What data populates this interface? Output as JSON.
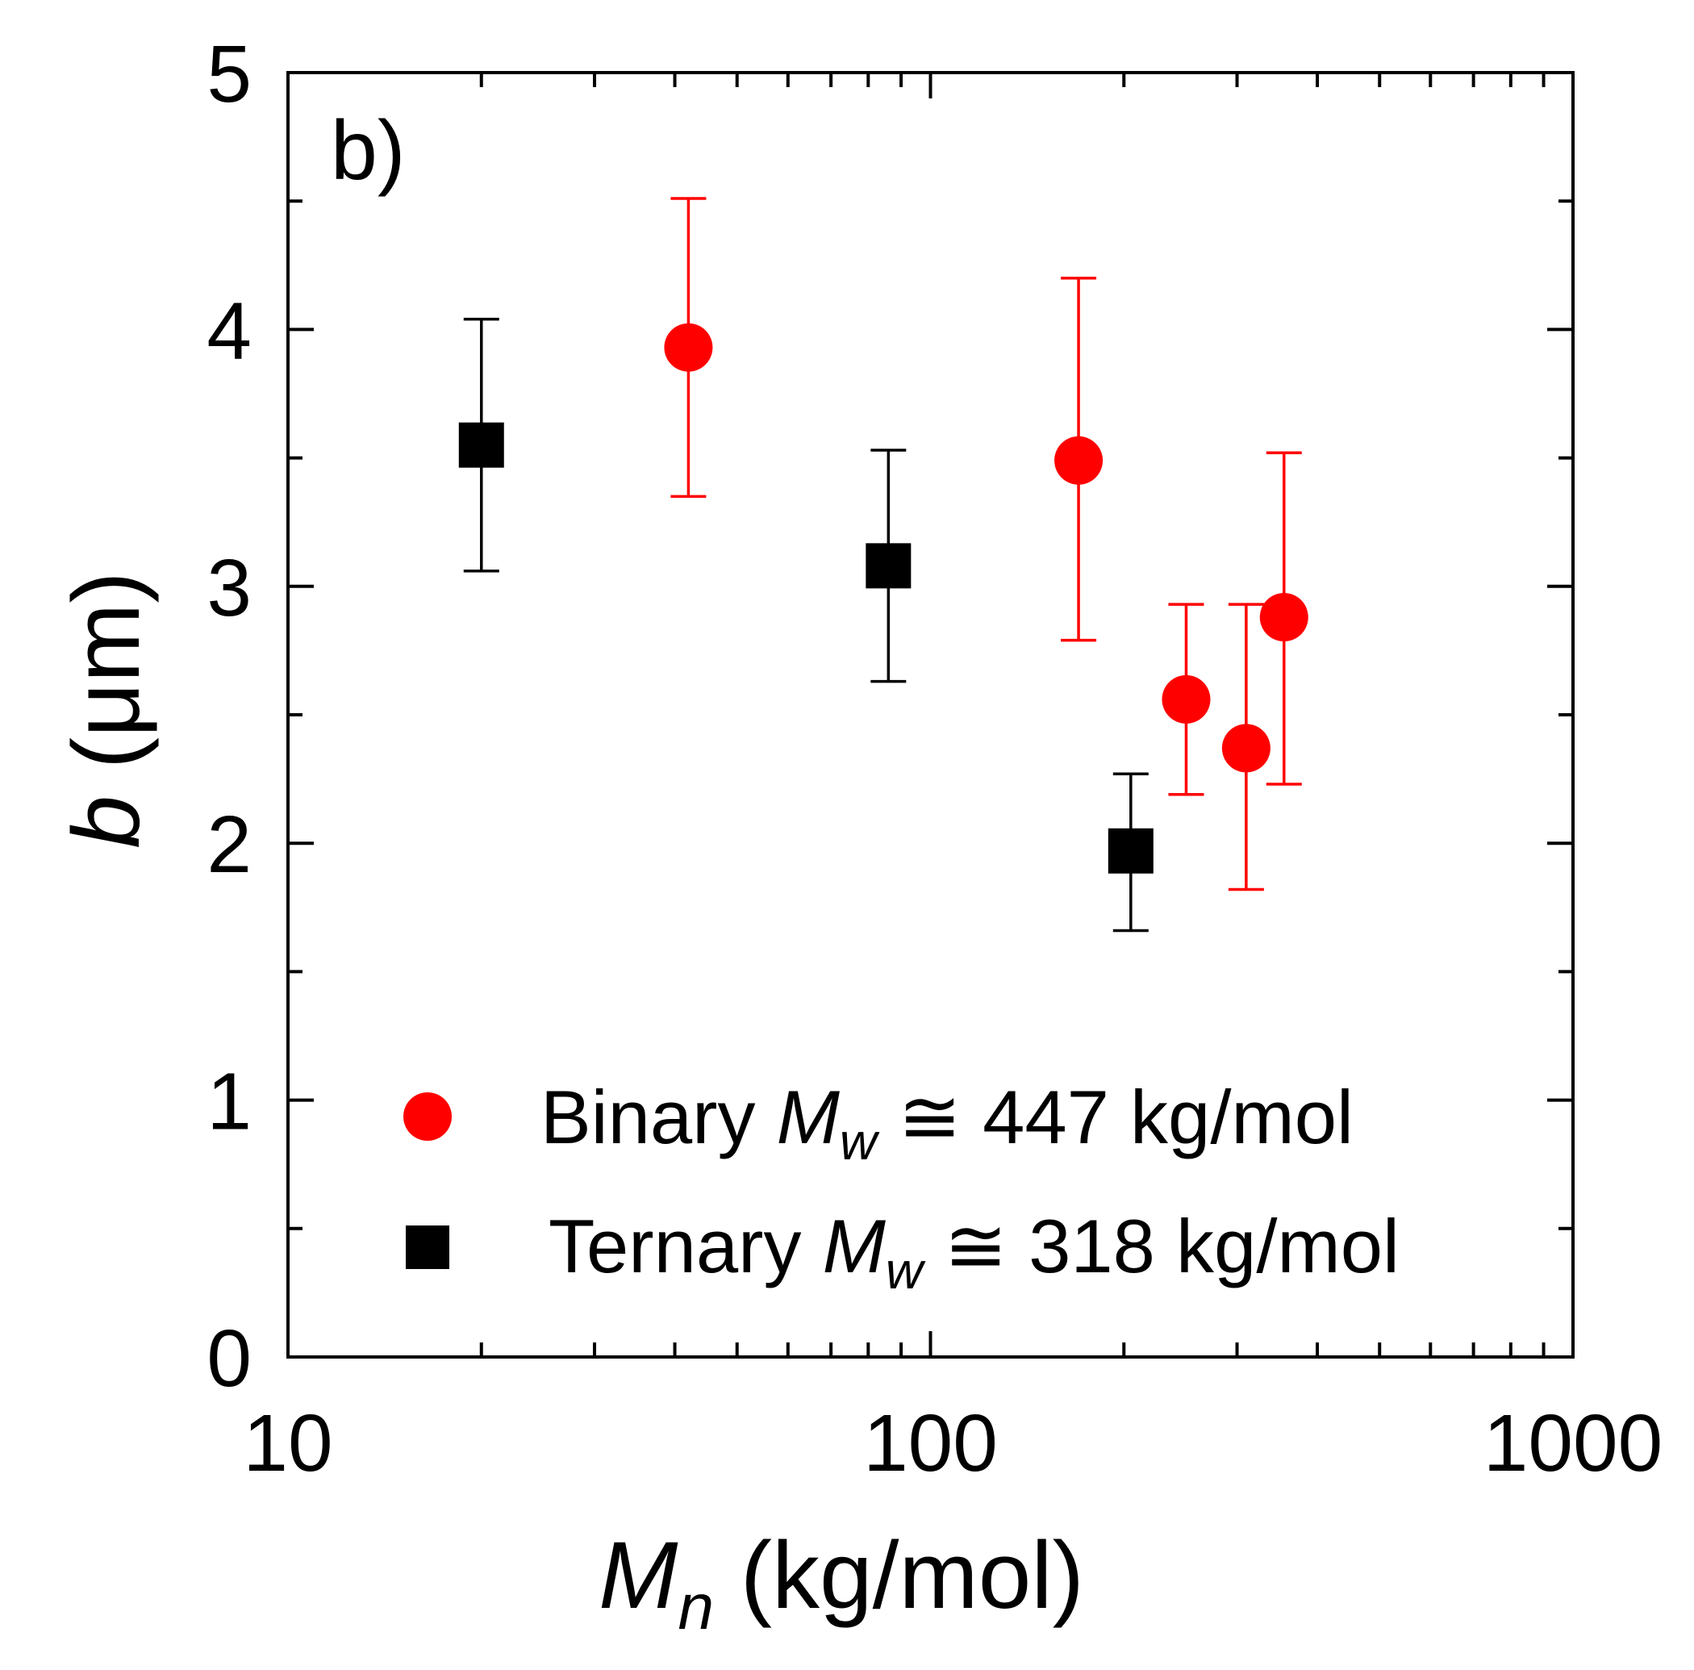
{
  "chart_data": {
    "type": "scatter",
    "panel_label": "b)",
    "x_axis": {
      "scale": "log",
      "range": [
        10,
        1000
      ],
      "tick_labels": [
        "10",
        "100",
        "1000"
      ],
      "title_main": "M",
      "title_sub": "n",
      "title_rest": " (kg/mol)"
    },
    "y_axis": {
      "scale": "linear",
      "range": [
        0,
        5
      ],
      "tick_labels": [
        "0",
        "1",
        "2",
        "3",
        "4",
        "5"
      ],
      "title_main": "b",
      "title_rest": " (μm)"
    },
    "grid": false,
    "legend_position": "bottom-left",
    "series": [
      {
        "name": "Binary",
        "legend_main": "Binary  ",
        "legend_m": "M",
        "legend_sub": "w",
        "legend_rest": " ≅ 447 kg/mol",
        "marker": "circle",
        "color": "#ff0000",
        "points": [
          {
            "x": 42,
            "y": 3.93,
            "ylow": 3.35,
            "yhigh": 4.51
          },
          {
            "x": 170,
            "y": 3.49,
            "ylow": 2.79,
            "yhigh": 4.2
          },
          {
            "x": 250,
            "y": 2.56,
            "ylow": 2.19,
            "yhigh": 2.93
          },
          {
            "x": 310,
            "y": 2.37,
            "ylow": 1.82,
            "yhigh": 2.93
          },
          {
            "x": 355,
            "y": 2.88,
            "ylow": 2.23,
            "yhigh": 3.52
          }
        ]
      },
      {
        "name": "Ternary",
        "legend_main": "Ternary ",
        "legend_m": "M",
        "legend_sub": "w",
        "legend_rest": " ≅ 318 kg/mol",
        "marker": "square",
        "color": "#000000",
        "points": [
          {
            "x": 20,
            "y": 3.55,
            "ylow": 3.06,
            "yhigh": 4.04
          },
          {
            "x": 86,
            "y": 3.08,
            "ylow": 2.63,
            "yhigh": 3.53
          },
          {
            "x": 205,
            "y": 1.97,
            "ylow": 1.66,
            "yhigh": 2.27
          }
        ]
      }
    ]
  }
}
